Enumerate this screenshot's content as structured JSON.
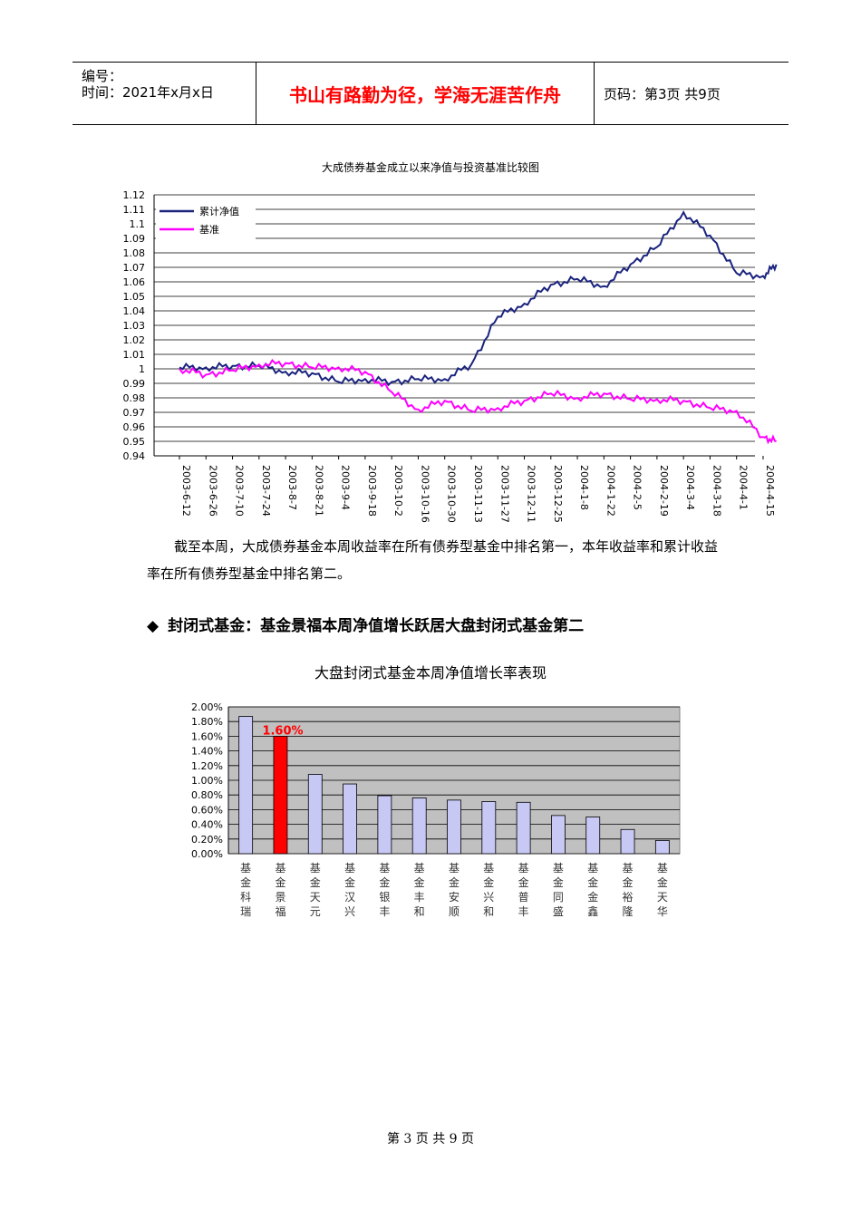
{
  "header": {
    "number_label": "编号：",
    "time_line": "时间：2021年x月x日",
    "motto": "书山有路勤为径，学海无涯苦作舟",
    "page_info": "页码：第3页 共9页"
  },
  "chart1_title": "大成债券基金成立以来净值与投资基准比较图",
  "paragraph1": "截至本周，大成债券基金本周收益率在所有债券型基金中排名第一，本年收益率和累计收益率在所有债券型基金中排名第二。",
  "section_heading": "封闭式基金：基金景福本周净值增长跃居大盘封闭式基金第二",
  "section_bullet": "◆",
  "chart2_title": "大盘封闭式基金本周净值增长率表现",
  "footer": "第 3 页 共 9 页",
  "colors": {
    "nav": "#1a237e",
    "benchmark": "#ff00ff",
    "bar": "#c8c8f5",
    "bar_highlight": "#ff0000",
    "plot_bg2": "#c0c0c0"
  },
  "chart_data": [
    {
      "type": "line",
      "x_ticks": [
        "2003-6-12",
        "2003-6-26",
        "2003-7-10",
        "2003-7-24",
        "2003-8-7",
        "2003-8-21",
        "2003-9-4",
        "2003-9-18",
        "2003-10-2",
        "2003-10-16",
        "2003-10-30",
        "2003-11-13",
        "2003-11-27",
        "2003-12-11",
        "2003-12-25",
        "2004-1-8",
        "2004-1-22",
        "2004-2-5",
        "2004-2-19",
        "2004-3-4",
        "2004-3-18",
        "2004-4-1",
        "2004-4-15"
      ],
      "y_ticks": [
        "1.12",
        "1.11",
        "1.1",
        "1.09",
        "1.08",
        "1.07",
        "1.06",
        "1.05",
        "1.04",
        "1.03",
        "1.02",
        "1.01",
        "1",
        "0.99",
        "0.98",
        "0.97",
        "0.96",
        "0.95",
        "0.94"
      ],
      "ylim": [
        0.94,
        1.12
      ],
      "legend_position": "top-left",
      "grid": true,
      "series": [
        {
          "name": "累计净值",
          "x_index": [
            0,
            1,
            2,
            3,
            4,
            5,
            6,
            7,
            8,
            9,
            10,
            11,
            12,
            13,
            14,
            15,
            16,
            17,
            18,
            19,
            20,
            21,
            22,
            22.5
          ],
          "values": [
            1.001,
            1.001,
            1.002,
            1.002,
            0.998,
            0.997,
            0.991,
            0.993,
            0.991,
            0.993,
            0.993,
            1.003,
            1.036,
            1.045,
            1.058,
            1.062,
            1.057,
            1.072,
            1.084,
            1.108,
            1.092,
            1.066,
            1.064,
            1.072
          ]
        },
        {
          "name": "基准",
          "x_index": [
            0,
            1,
            2,
            3,
            4,
            5,
            6,
            7,
            8,
            9,
            10,
            11,
            12,
            13,
            14,
            15,
            16,
            17,
            18,
            19,
            20,
            21,
            22,
            22.5
          ],
          "values": [
            1.0,
            0.996,
            0.999,
            1.003,
            1.004,
            1.001,
            1.001,
            0.998,
            0.984,
            0.972,
            0.978,
            0.971,
            0.973,
            0.978,
            0.983,
            0.98,
            0.983,
            0.979,
            0.979,
            0.978,
            0.973,
            0.971,
            0.953,
            0.95
          ]
        }
      ]
    },
    {
      "type": "bar",
      "categories": [
        "基金科瑞",
        "基金景福",
        "基金天元",
        "基金汉兴",
        "基金银丰",
        "基金丰和",
        "基金安顺",
        "基金兴和",
        "基金普丰",
        "基金同盛",
        "基金金鑫",
        "基金裕隆",
        "基金天华"
      ],
      "values": [
        1.87,
        1.6,
        1.08,
        0.95,
        0.79,
        0.76,
        0.73,
        0.71,
        0.7,
        0.52,
        0.5,
        0.33,
        0.18
      ],
      "highlight_index": 1,
      "data_labels": [
        {
          "index": 1,
          "text": "1.60%"
        }
      ],
      "y_ticks": [
        "2.00%",
        "1.80%",
        "1.60%",
        "1.40%",
        "1.20%",
        "1.00%",
        "0.80%",
        "0.60%",
        "0.40%",
        "0.20%",
        "0.00%"
      ],
      "ylim": [
        0,
        2.0
      ],
      "grid": true
    }
  ]
}
